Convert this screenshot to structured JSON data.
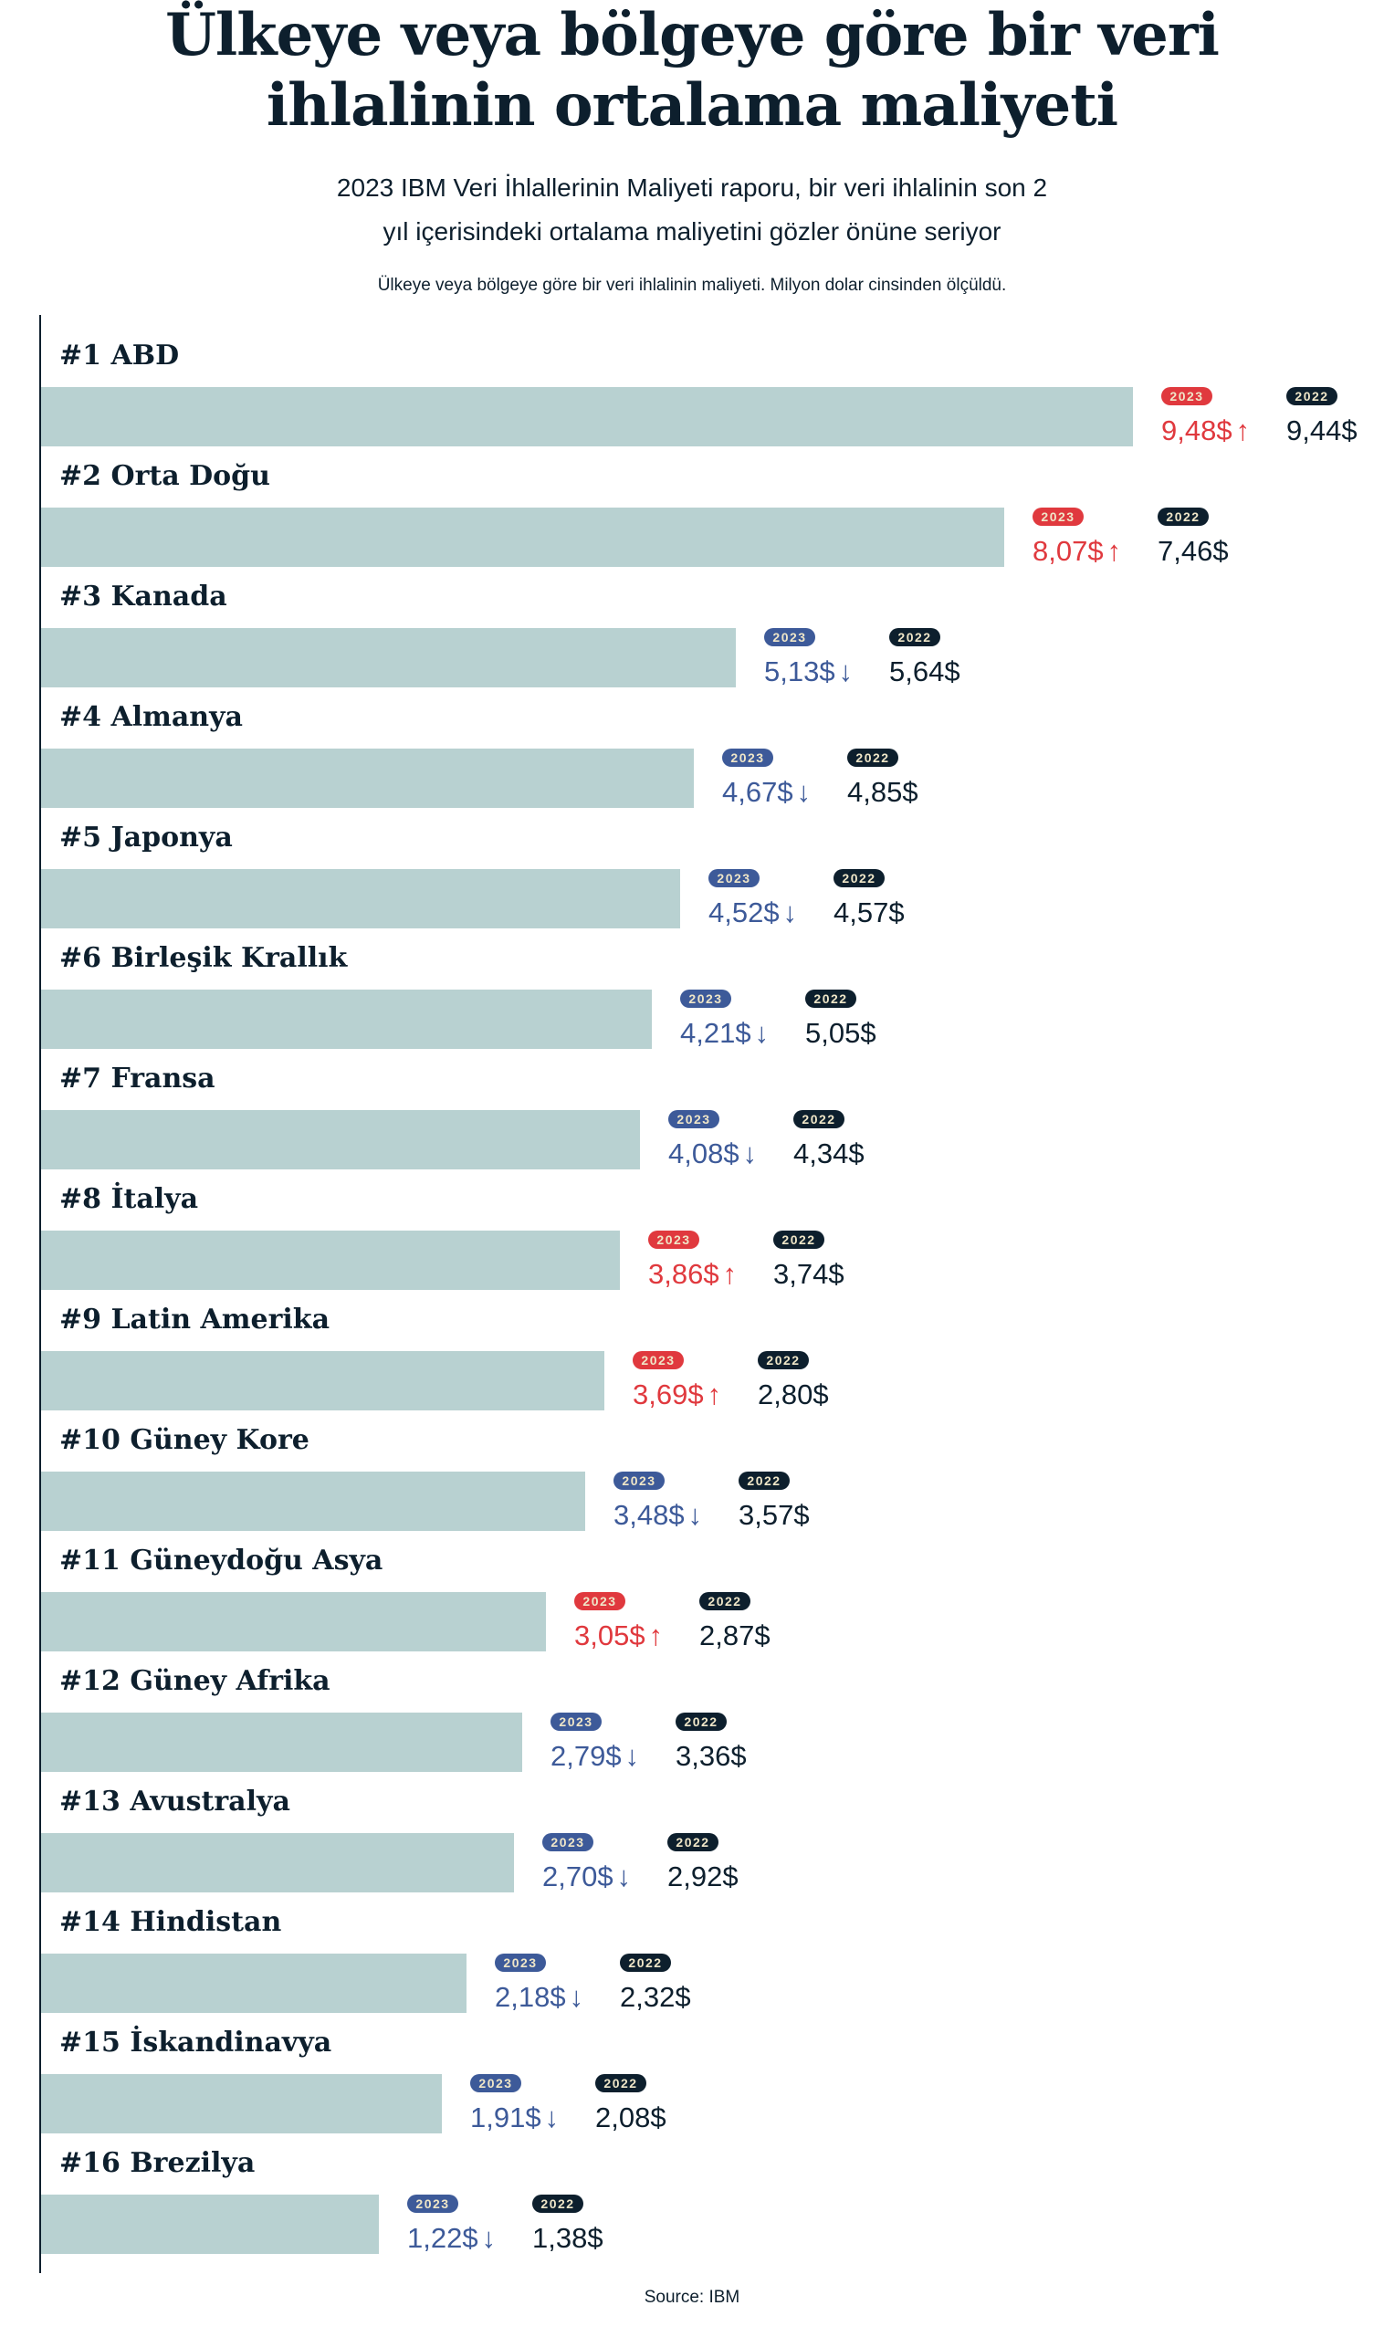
{
  "title_line1": "Ülkeye veya bölgeye göre bir veri",
  "title_line2": "ihlalinin ortalama maliyeti",
  "subtitle_line1": "2023 IBM Veri İhlallerinin Maliyeti raporu, bir veri ihlalinin son 2",
  "subtitle_line2": "yıl içerisindeki ortalama maliyetini gözler önüne seriyor",
  "note": "Ülkeye veya bölgeye göre bir veri ihlalinin maliyeti. Milyon dolar cinsinden ölçüldü.",
  "source": "Source: IBM",
  "colors": {
    "bar": "#b8d1d1",
    "up": "#e0393e",
    "down": "#3d5a99",
    "dark": "#0d1f2d"
  },
  "chart_data": {
    "type": "bar",
    "orientation": "horizontal",
    "series_labels": [
      "2023",
      "2022"
    ],
    "categories": [
      "#1 ABD",
      "#2 Orta Doğu",
      "#3 Kanada",
      "#4 Almanya",
      "#5 Japonya",
      "#6 Birleşik Krallık",
      "#7 Fransa",
      "#8 İtalya",
      "#9 Latin Amerika",
      "#10 Güney Kore",
      "#11 Güneydoğu Asya",
      "#12 Güney Afrika",
      "#13 Avustralya",
      "#14 Hindistan",
      "#15 İskandinavya",
      "#16 Brezilya"
    ],
    "values_2023": [
      9.48,
      8.07,
      5.13,
      4.67,
      4.52,
      4.21,
      4.08,
      3.86,
      3.69,
      3.48,
      3.05,
      2.79,
      2.7,
      2.18,
      1.91,
      1.22
    ],
    "values_2022": [
      9.44,
      7.46,
      5.64,
      4.85,
      4.57,
      5.05,
      4.34,
      3.74,
      2.8,
      3.57,
      2.87,
      3.36,
      2.92,
      2.32,
      2.08,
      1.38
    ],
    "labels_2023": [
      "9,48$",
      "8,07$",
      "5,13$",
      "4,67$",
      "4,52$",
      "4,21$",
      "4,08$",
      "3,86$",
      "3,69$",
      "3,48$",
      "3,05$",
      "2,79$",
      "2,70$",
      "2,18$",
      "1,91$",
      "1,22$"
    ],
    "labels_2022": [
      "9,44$",
      "7,46$",
      "5,64$",
      "4,85$",
      "4,57$",
      "5,05$",
      "4,34$",
      "3,74$",
      "2,80$",
      "3,57$",
      "2,87$",
      "3,36$",
      "2,92$",
      "2,32$",
      "2,08$",
      "1,38$"
    ],
    "arrow_up": "↑",
    "arrow_down": "↓"
  }
}
